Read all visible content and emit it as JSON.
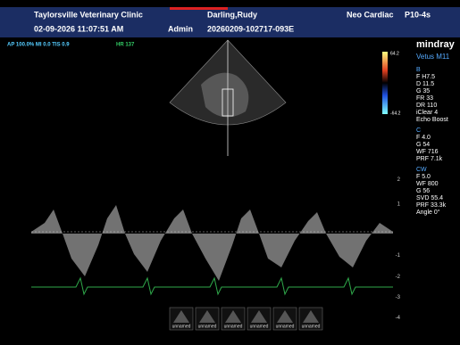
{
  "header": {
    "clinic": "Taylorsville Veterinary Clinic",
    "patient": "Darling,Rudy",
    "exam": "Neo Cardiac",
    "probe": "P10-4s",
    "datetime": "02-09-2026 11:07:51 AM",
    "operator": "Admin",
    "exam_id": "20260209-102717-093E"
  },
  "status": {
    "acoustic": "AP 100.0% MI 0.0 TIS 0.9",
    "heart_rate": "HR 137"
  },
  "brand": {
    "name": "mindray",
    "model": "Vetus M11"
  },
  "color_bar": {
    "max": "64.2",
    "min": "-64.2"
  },
  "parameters": [
    {
      "mode": "B",
      "items": [
        "F H7.5",
        "D 11.5",
        "G 35",
        "FR 33",
        "DR 110",
        "iClear 4",
        "Echo Boost"
      ]
    },
    {
      "mode": "C",
      "items": [
        "F 4.0",
        "G 54",
        "WF 716",
        "PRF 7.1k"
      ]
    },
    {
      "mode": "CW",
      "items": [
        "F 5.0",
        "WF 800",
        "G 56",
        "SVD 55.4",
        "PRF 33.3k",
        "Angle 0°"
      ]
    }
  ],
  "doppler_scale": [
    "2",
    "1",
    "-1",
    "-2",
    "-3",
    "-4"
  ],
  "thumbnails": [
    "unnamed",
    "unnamed",
    "unnamed",
    "unnamed",
    "unnamed",
    "unnamed"
  ]
}
